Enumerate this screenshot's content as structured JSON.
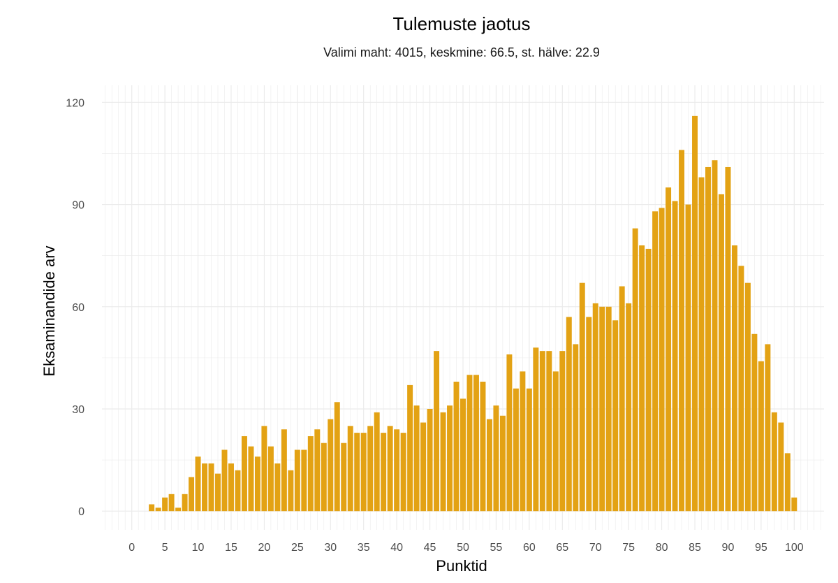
{
  "chart_data": {
    "type": "bar",
    "title": "Tulemuste jaotus",
    "subtitle": "Valimi maht: 4015, keskmine: 66.5, st. hälve: 22.9",
    "xlabel": "Punktid",
    "ylabel": "Eksaminandide arv",
    "xlim": [
      -4.5,
      104.5
    ],
    "ylim": [
      -5.5,
      125
    ],
    "x_ticks": [
      0,
      5,
      10,
      15,
      20,
      25,
      30,
      35,
      40,
      45,
      50,
      55,
      60,
      65,
      70,
      75,
      80,
      85,
      90,
      95,
      100
    ],
    "y_ticks": [
      0,
      30,
      60,
      90,
      120
    ],
    "grid": true,
    "bar_color": "#E3A214",
    "x": [
      3,
      4,
      5,
      6,
      7,
      8,
      9,
      10,
      11,
      12,
      13,
      14,
      15,
      16,
      17,
      18,
      19,
      20,
      21,
      22,
      23,
      24,
      25,
      26,
      27,
      28,
      29,
      30,
      31,
      32,
      33,
      34,
      35,
      36,
      37,
      38,
      39,
      40,
      41,
      42,
      43,
      44,
      45,
      46,
      47,
      48,
      49,
      50,
      51,
      52,
      53,
      54,
      55,
      56,
      57,
      58,
      59,
      60,
      61,
      62,
      63,
      64,
      65,
      66,
      67,
      68,
      69,
      70,
      71,
      72,
      73,
      74,
      75,
      76,
      77,
      78,
      79,
      80,
      81,
      82,
      83,
      84,
      85,
      86,
      87,
      88,
      89,
      90,
      91,
      92,
      93,
      94,
      95,
      96,
      97,
      98,
      99,
      100
    ],
    "values": [
      2,
      1,
      4,
      5,
      1,
      5,
      10,
      16,
      14,
      14,
      11,
      18,
      14,
      12,
      22,
      19,
      16,
      25,
      19,
      14,
      24,
      12,
      18,
      18,
      22,
      24,
      20,
      27,
      32,
      20,
      25,
      23,
      23,
      25,
      29,
      23,
      25,
      24,
      23,
      37,
      31,
      26,
      30,
      47,
      29,
      31,
      38,
      33,
      40,
      40,
      38,
      27,
      31,
      28,
      46,
      36,
      41,
      36,
      48,
      47,
      47,
      41,
      47,
      57,
      49,
      67,
      57,
      61,
      60,
      60,
      56,
      66,
      61,
      83,
      78,
      77,
      88,
      89,
      95,
      91,
      106,
      90,
      116,
      98,
      101,
      103,
      93,
      101,
      78,
      72,
      67,
      52,
      44,
      49,
      29,
      26,
      17,
      4
    ]
  }
}
